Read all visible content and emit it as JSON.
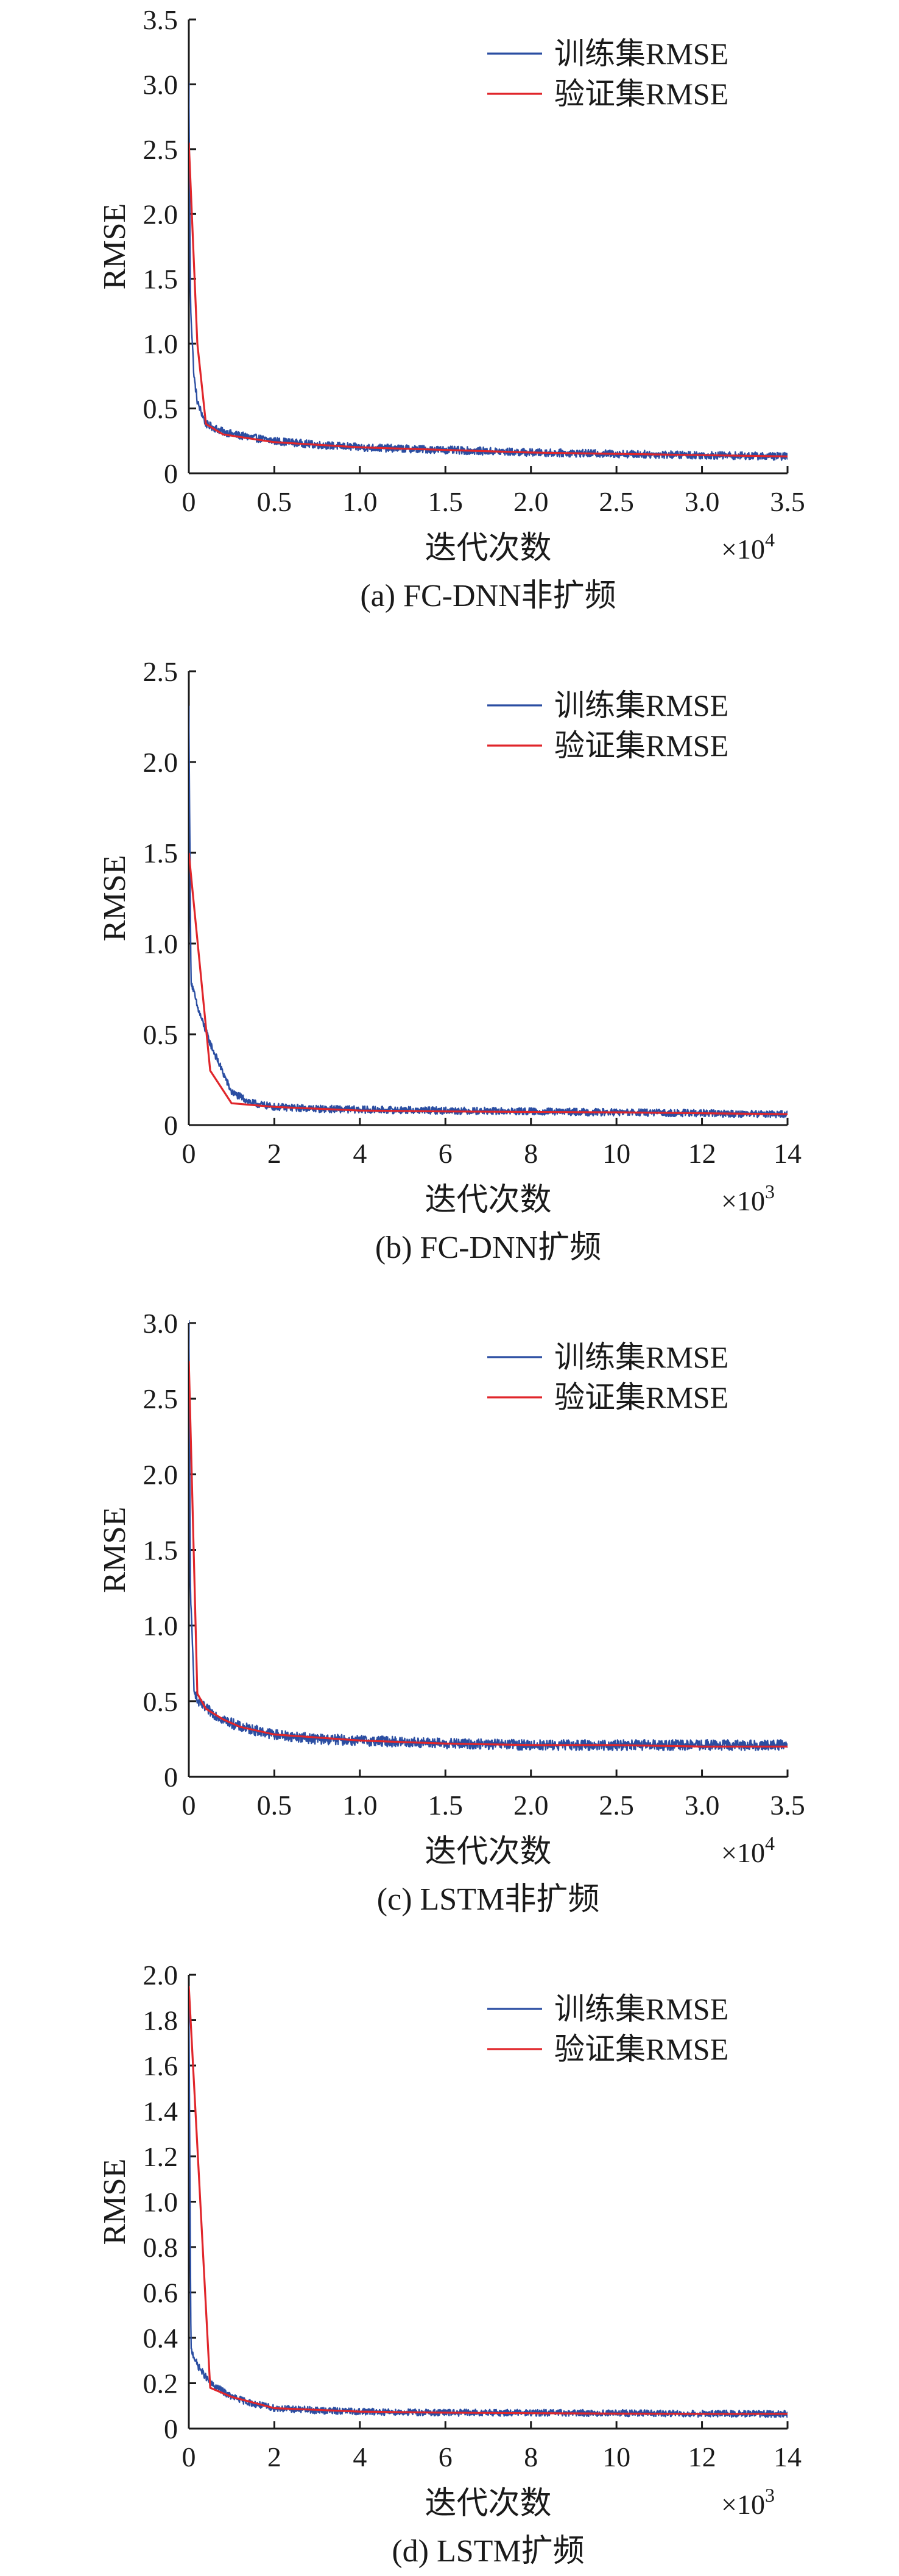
{
  "chart_data": [
    {
      "type": "line",
      "caption": "(a) FC-DNN非扩频",
      "xlabel": "迭代次数",
      "ylabel": "RMSE",
      "x_multiplier": {
        "base": "×10",
        "exp": "4"
      },
      "xlim": [
        0,
        3.5
      ],
      "ylim": [
        0,
        3.5
      ],
      "xticks": [
        0,
        0.5,
        1.0,
        1.5,
        2.0,
        2.5,
        3.0,
        3.5
      ],
      "xtick_labels": [
        "0",
        "0.5",
        "1.0",
        "1.5",
        "2.0",
        "2.5",
        "3.0",
        "3.5"
      ],
      "yticks": [
        0,
        0.5,
        1.0,
        1.5,
        2.0,
        2.5,
        3.0,
        3.5
      ],
      "ytick_labels": [
        "0",
        "0.5",
        "1.0",
        "1.5",
        "2.0",
        "2.5",
        "3.0",
        "3.5"
      ],
      "legend_position": "top-right",
      "series": [
        {
          "name": "训练集RMSE",
          "color": "#2b4ea2",
          "noisy": true,
          "noise": 0.03,
          "x": [
            0,
            0.01,
            0.03,
            0.05,
            0.1,
            0.2,
            0.3,
            0.5,
            0.75,
            1.0,
            1.5,
            2.0,
            2.5,
            3.0,
            3.5
          ],
          "y": [
            3.0,
            1.3,
            0.75,
            0.55,
            0.38,
            0.32,
            0.29,
            0.25,
            0.22,
            0.2,
            0.18,
            0.16,
            0.15,
            0.14,
            0.13
          ]
        },
        {
          "name": "验证集RMSE",
          "color": "#e0262b",
          "noisy": false,
          "x": [
            0,
            0.05,
            0.1,
            0.2,
            0.5,
            1.0,
            1.5,
            2.0,
            2.5,
            3.0,
            3.5
          ],
          "y": [
            2.55,
            1.0,
            0.38,
            0.3,
            0.24,
            0.2,
            0.18,
            0.16,
            0.15,
            0.14,
            0.13
          ]
        }
      ]
    },
    {
      "type": "line",
      "caption": "(b) FC-DNN扩频",
      "xlabel": "迭代次数",
      "ylabel": "RMSE",
      "x_multiplier": {
        "base": "×10",
        "exp": "3"
      },
      "xlim": [
        0,
        14
      ],
      "ylim": [
        0,
        2.5
      ],
      "xticks": [
        0,
        2,
        4,
        6,
        8,
        10,
        12,
        14
      ],
      "xtick_labels": [
        "0",
        "2",
        "4",
        "6",
        "8",
        "10",
        "12",
        "14"
      ],
      "yticks": [
        0,
        0.5,
        1.0,
        1.5,
        2.0,
        2.5
      ],
      "ytick_labels": [
        "0",
        "0.5",
        "1.0",
        "1.5",
        "2.0",
        "2.5"
      ],
      "legend_position": "top-right",
      "series": [
        {
          "name": "训练集RMSE",
          "color": "#2b4ea2",
          "noisy": true,
          "noise": 0.02,
          "x": [
            0,
            0.05,
            0.2,
            0.5,
            1.0,
            1.5,
            2.0,
            3.0,
            4.0,
            6.0,
            8.0,
            10.0,
            12.0,
            14.0
          ],
          "y": [
            2.3,
            0.8,
            0.65,
            0.45,
            0.18,
            0.12,
            0.1,
            0.09,
            0.085,
            0.08,
            0.075,
            0.07,
            0.065,
            0.06
          ]
        },
        {
          "name": "验证集RMSE",
          "color": "#e0262b",
          "noisy": false,
          "x": [
            0,
            0.5,
            1.0,
            2.0,
            4.0,
            6.0,
            8.0,
            10.0,
            12.0,
            14.0
          ],
          "y": [
            1.5,
            0.3,
            0.12,
            0.1,
            0.08,
            0.075,
            0.072,
            0.07,
            0.065,
            0.06
          ]
        }
      ]
    },
    {
      "type": "line",
      "caption": "(c) LSTM非扩频",
      "xlabel": "迭代次数",
      "ylabel": "RMSE",
      "x_multiplier": {
        "base": "×10",
        "exp": "4"
      },
      "xlim": [
        0,
        3.5
      ],
      "ylim": [
        0,
        3.0
      ],
      "xticks": [
        0,
        0.5,
        1.0,
        1.5,
        2.0,
        2.5,
        3.0,
        3.5
      ],
      "xtick_labels": [
        "0",
        "0.5",
        "1.0",
        "1.5",
        "2.0",
        "2.5",
        "3.0",
        "3.5"
      ],
      "yticks": [
        0,
        0.5,
        1.0,
        1.5,
        2.0,
        2.5,
        3.0
      ],
      "ytick_labels": [
        "0",
        "0.5",
        "1.0",
        "1.5",
        "2.0",
        "2.5",
        "3.0"
      ],
      "legend_position": "top-right",
      "series": [
        {
          "name": "训练集RMSE",
          "color": "#2b4ea2",
          "noisy": true,
          "noise": 0.035,
          "x": [
            0,
            0.01,
            0.03,
            0.05,
            0.1,
            0.2,
            0.3,
            0.5,
            0.75,
            1.0,
            1.5,
            2.0,
            2.5,
            3.0,
            3.5
          ],
          "y": [
            3.0,
            1.2,
            0.6,
            0.5,
            0.45,
            0.38,
            0.33,
            0.28,
            0.25,
            0.24,
            0.22,
            0.21,
            0.21,
            0.21,
            0.21
          ]
        },
        {
          "name": "验证集RMSE",
          "color": "#e0262b",
          "noisy": false,
          "x": [
            0,
            0.05,
            0.1,
            0.2,
            0.3,
            0.5,
            1.0,
            1.5,
            2.0,
            2.5,
            3.0,
            3.5
          ],
          "y": [
            2.75,
            0.55,
            0.45,
            0.38,
            0.33,
            0.28,
            0.24,
            0.22,
            0.21,
            0.21,
            0.2,
            0.2
          ]
        }
      ]
    },
    {
      "type": "line",
      "caption": "(d) LSTM扩频",
      "xlabel": "迭代次数",
      "ylabel": "RMSE",
      "x_multiplier": {
        "base": "×10",
        "exp": "3"
      },
      "xlim": [
        0,
        14
      ],
      "ylim": [
        0,
        2.0
      ],
      "xticks": [
        0,
        2,
        4,
        6,
        8,
        10,
        12,
        14
      ],
      "xtick_labels": [
        "0",
        "2",
        "4",
        "6",
        "8",
        "10",
        "12",
        "14"
      ],
      "yticks": [
        0,
        0.2,
        0.4,
        0.6,
        0.8,
        1.0,
        1.2,
        1.4,
        1.6,
        1.8,
        2.0
      ],
      "ytick_labels": [
        "0",
        "0.2",
        "0.4",
        "0.6",
        "0.8",
        "1.0",
        "1.2",
        "1.4",
        "1.6",
        "1.8",
        "2.0"
      ],
      "legend_position": "top-right",
      "series": [
        {
          "name": "训练集RMSE",
          "color": "#2b4ea2",
          "noisy": true,
          "noise": 0.015,
          "x": [
            0,
            0.05,
            0.2,
            0.5,
            1.0,
            1.5,
            2.0,
            3.0,
            4.0,
            6.0,
            8.0,
            10.0,
            12.0,
            14.0
          ],
          "y": [
            1.9,
            0.35,
            0.28,
            0.2,
            0.14,
            0.11,
            0.09,
            0.08,
            0.075,
            0.07,
            0.07,
            0.068,
            0.066,
            0.065
          ]
        },
        {
          "name": "验证集RMSE",
          "color": "#e0262b",
          "noisy": false,
          "x": [
            0,
            0.5,
            1.0,
            2.0,
            4.0,
            6.0,
            8.0,
            10.0,
            12.0,
            14.0
          ],
          "y": [
            1.95,
            0.18,
            0.14,
            0.09,
            0.075,
            0.07,
            0.068,
            0.066,
            0.065,
            0.065
          ]
        }
      ]
    }
  ]
}
